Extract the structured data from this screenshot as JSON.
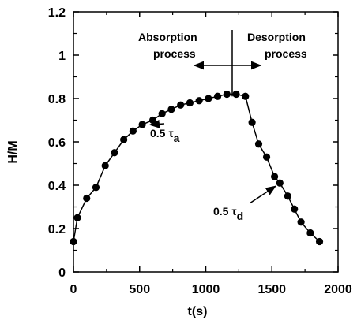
{
  "chart_data": {
    "type": "line",
    "xlabel": "t(s)",
    "ylabel": "H/M",
    "xlim": [
      0,
      2000
    ],
    "ylim": [
      0,
      1.2
    ],
    "x_ticks": [
      0,
      500,
      1000,
      1500,
      2000
    ],
    "y_ticks": [
      0,
      0.2,
      0.4,
      0.6,
      0.8,
      1,
      1.2
    ],
    "x_tick_labels": [
      "0",
      "500",
      "1000",
      "1500",
      "2000"
    ],
    "y_tick_labels": [
      "0",
      "0.2",
      "0.4",
      "0.6",
      "0.8",
      "1",
      "1.2"
    ],
    "grid": false,
    "legend": "none",
    "series": [
      {
        "x": [
          0,
          30,
          100,
          170,
          240,
          310,
          380,
          450,
          520,
          600,
          670,
          740,
          810,
          880,
          950,
          1020,
          1090,
          1160,
          1230,
          1300,
          1350,
          1400,
          1460,
          1520,
          1560,
          1620,
          1670,
          1720,
          1790,
          1860
        ],
        "y": [
          0.14,
          0.25,
          0.34,
          0.39,
          0.49,
          0.55,
          0.61,
          0.65,
          0.68,
          0.7,
          0.73,
          0.75,
          0.77,
          0.78,
          0.79,
          0.8,
          0.81,
          0.82,
          0.82,
          0.81,
          0.69,
          0.59,
          0.53,
          0.44,
          0.41,
          0.35,
          0.29,
          0.23,
          0.18,
          0.14
        ],
        "color": "#000000",
        "marker": "filled-circle"
      }
    ],
    "annotations": [
      {
        "id": "absorption-label",
        "lines": [
          "Absorption",
          "process"
        ]
      },
      {
        "id": "desorption-label",
        "lines": [
          "Desorption",
          "process"
        ]
      },
      {
        "id": "tau-a",
        "text": "0.5 τ",
        "subscript": "a"
      },
      {
        "id": "tau-d",
        "text": "0.5 τ",
        "subscript": "d"
      }
    ]
  }
}
